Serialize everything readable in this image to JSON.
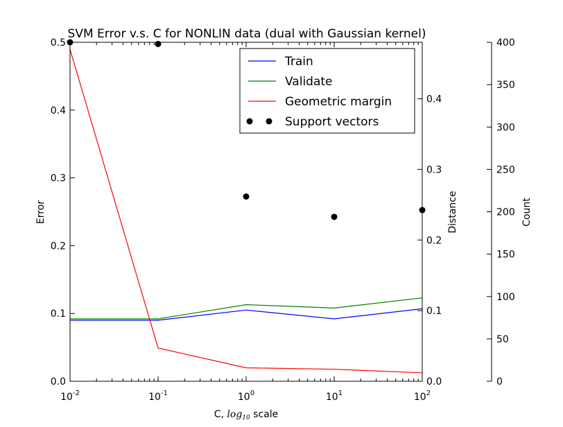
{
  "chart_data": {
    "type": "line",
    "title": "SVM Error v.s. C for NONLIN data (dual with Gaussian kernel)",
    "xlabel_prefix": "C, ",
    "xlabel_math": "log",
    "xlabel_sub": "10",
    "xlabel_suffix": " scale",
    "x_scale": "log",
    "x": [
      0.01,
      0.1,
      1,
      10,
      100
    ],
    "x_tick_labels": [
      {
        "base": "10",
        "exp": "-2"
      },
      {
        "base": "10",
        "exp": "-1"
      },
      {
        "base": "10",
        "exp": "0"
      },
      {
        "base": "10",
        "exp": "1"
      },
      {
        "base": "10",
        "exp": "2"
      }
    ],
    "axes": {
      "error": {
        "label": "Error",
        "ylim": [
          0,
          0.5
        ],
        "ticks": [
          "0.0",
          "0.1",
          "0.2",
          "0.3",
          "0.4",
          "0.5"
        ]
      },
      "distance": {
        "label": "Distance",
        "ylim": [
          0,
          0.48
        ],
        "ticks": [
          "0.0",
          "0.1",
          "0.2",
          "0.3",
          "0.4"
        ]
      },
      "count": {
        "label": "Count",
        "ylim": [
          0,
          400
        ],
        "ticks": [
          "0",
          "50",
          "100",
          "150",
          "200",
          "250",
          "300",
          "350",
          "400"
        ]
      }
    },
    "series": [
      {
        "name": "Train",
        "axis": "error",
        "style": "line",
        "color": "#0000ff",
        "values": [
          0.09,
          0.09,
          0.105,
          0.092,
          0.107
        ]
      },
      {
        "name": "Validate",
        "axis": "error",
        "style": "line",
        "color": "#008000",
        "values": [
          0.092,
          0.092,
          0.113,
          0.108,
          0.123
        ]
      },
      {
        "name": "Geometric margin",
        "axis": "distance",
        "style": "line",
        "color": "#ff0000",
        "values": [
          0.47,
          0.047,
          0.019,
          0.017,
          0.012
        ]
      },
      {
        "name": "Support vectors",
        "axis": "count",
        "style": "dots",
        "color": "#000000",
        "values": [
          400,
          398,
          218,
          194,
          202
        ]
      }
    ],
    "legend_position": "top-right",
    "grid": false
  }
}
